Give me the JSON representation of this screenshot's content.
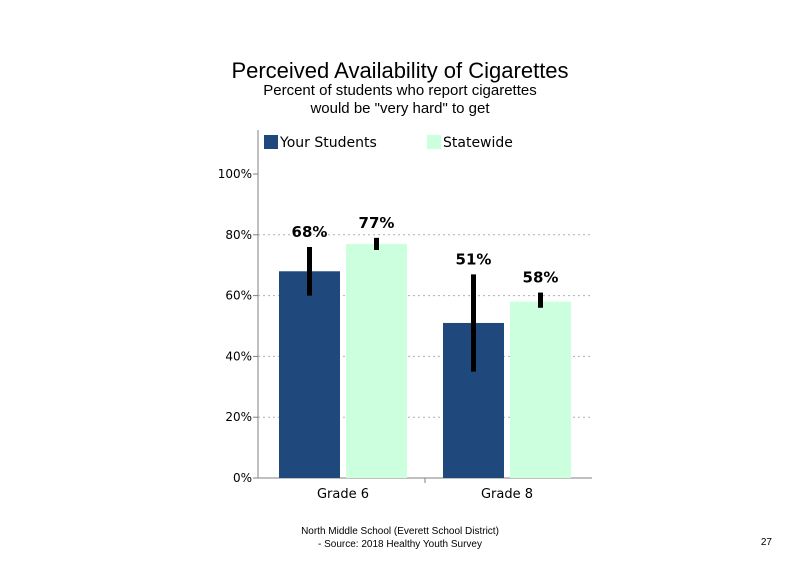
{
  "chart_data": {
    "type": "bar",
    "title": "Perceived Availability of Cigarettes",
    "subtitle_lines": [
      "Percent of students who report cigarettes",
      "would be \"very hard\" to get"
    ],
    "categories": [
      "Grade 6",
      "Grade 8"
    ],
    "series": [
      {
        "name": "Your Students",
        "color": "#1f497d",
        "values": [
          68,
          51
        ],
        "labels": [
          "68%",
          "51%"
        ],
        "error_low": [
          60,
          35
        ],
        "error_high": [
          76,
          67
        ]
      },
      {
        "name": "Statewide",
        "color": "#ccffdd",
        "values": [
          77,
          58
        ],
        "labels": [
          "77%",
          "58%"
        ],
        "error_low": [
          75,
          56
        ],
        "error_high": [
          79,
          61
        ]
      }
    ],
    "ylim": [
      0,
      100
    ],
    "yticks": [
      "0%",
      "20%",
      "40%",
      "60%",
      "80%",
      "100%"
    ],
    "ytick_values": [
      0,
      20,
      40,
      60,
      80,
      100
    ],
    "grid": true,
    "legend": "top"
  },
  "footer": {
    "line1": "North Middle School (Everett School District)",
    "line2": "- Source: 2018 Healthy  Youth Survey"
  },
  "page_number": "27"
}
